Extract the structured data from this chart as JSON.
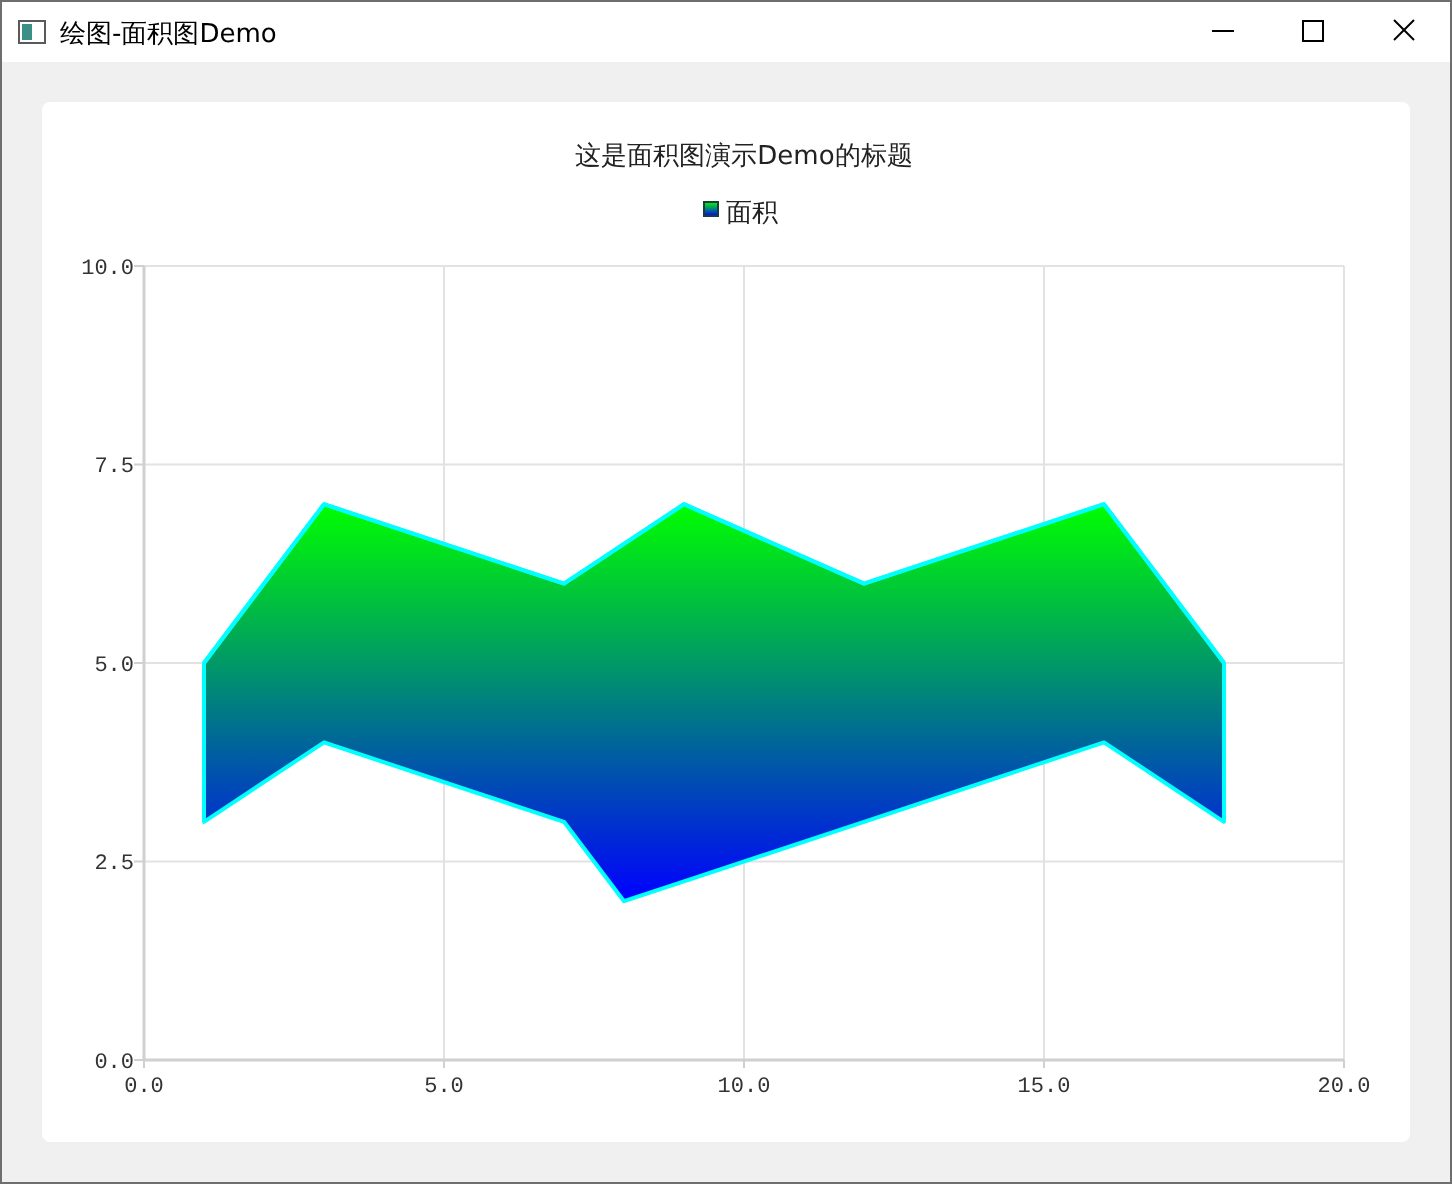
{
  "chart_data": {
    "type": "line",
    "title": "这是面积图演示Demo的标题",
    "annotations": [
      "绘图-面积图Demo"
    ],
    "series": [
      {
        "name": "面积",
        "color": "#00ffff",
        "x": [
          1,
          3,
          7,
          8,
          9,
          12,
          16,
          18
        ],
        "values": [
          5,
          7,
          6,
          6.5,
          7,
          6,
          7,
          5
        ],
        "upper": [
          5,
          7,
          6,
          6.5,
          7,
          6,
          7,
          5
        ],
        "lower": [
          3,
          4,
          3,
          2,
          2.25,
          3,
          4,
          3
        ]
      }
    ],
    "xlim": [
      0,
      20
    ],
    "xticks": [
      {
        "value": 0,
        "label": "0.0"
      },
      {
        "value": 5,
        "label": "5.0"
      },
      {
        "value": 10,
        "label": "10.0"
      },
      {
        "value": 15,
        "label": "15.0"
      },
      {
        "value": 20,
        "label": "20.0"
      }
    ],
    "ylim": [
      0,
      10
    ],
    "yticks": [
      {
        "value": 0,
        "label": "0.0"
      },
      {
        "value": 2.5,
        "label": "2.5"
      },
      {
        "value": 5,
        "label": "5.0"
      },
      {
        "value": 7.5,
        "label": "7.5"
      },
      {
        "value": 10,
        "label": "10.0"
      }
    ],
    "grid": true,
    "legend": "top"
  }
}
